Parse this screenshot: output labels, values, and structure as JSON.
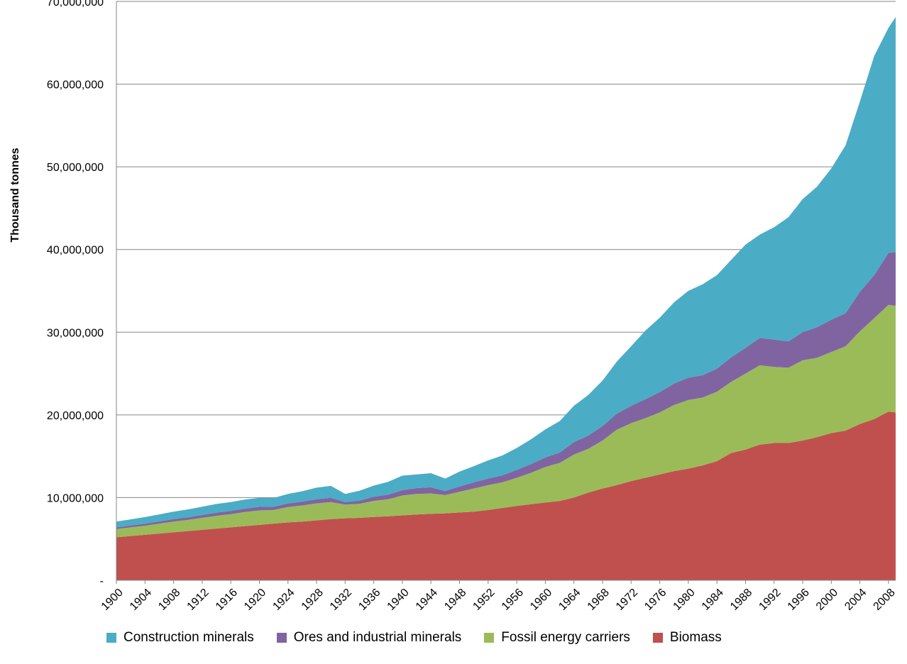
{
  "chart_data": {
    "type": "area",
    "stacked": true,
    "title": "",
    "xlabel": "",
    "ylabel": "Thousand tonnes",
    "ylim": [
      0,
      70000000
    ],
    "y_ticks": [
      0,
      10000000,
      20000000,
      30000000,
      40000000,
      50000000,
      60000000,
      70000000
    ],
    "y_tick_labels": [
      "-",
      "10,000,000",
      "20,000,000",
      "30,000,000",
      "40,000,000",
      "50,000,000",
      "60,000,000",
      "70,000,000"
    ],
    "x_tick_labels": [
      "1900",
      "1904",
      "1908",
      "1912",
      "1916",
      "1920",
      "1924",
      "1928",
      "1932",
      "1936",
      "1940",
      "1944",
      "1948",
      "1952",
      "1956",
      "1960",
      "1964",
      "1968",
      "1972",
      "1976",
      "1980",
      "1984",
      "1988",
      "1992",
      "1996",
      "2000",
      "2004",
      "2008"
    ],
    "grid": true,
    "legend_position": "bottom",
    "x": [
      1900,
      1902,
      1904,
      1906,
      1908,
      1910,
      1912,
      1914,
      1916,
      1918,
      1920,
      1922,
      1924,
      1926,
      1928,
      1930,
      1932,
      1934,
      1936,
      1938,
      1940,
      1942,
      1944,
      1946,
      1948,
      1950,
      1952,
      1954,
      1956,
      1958,
      1960,
      1962,
      1964,
      1966,
      1968,
      1970,
      1972,
      1974,
      1976,
      1978,
      1980,
      1982,
      1984,
      1986,
      1988,
      1990,
      1992,
      1994,
      1996,
      1998,
      2000,
      2002,
      2004,
      2006,
      2008,
      2009
    ],
    "series": [
      {
        "name": "Biomass",
        "color": "#C0504D",
        "values": [
          5200000,
          5350000,
          5500000,
          5650000,
          5800000,
          5950000,
          6100000,
          6250000,
          6400000,
          6550000,
          6700000,
          6850000,
          7000000,
          7100000,
          7250000,
          7400000,
          7500000,
          7550000,
          7650000,
          7750000,
          7850000,
          7950000,
          8050000,
          8100000,
          8200000,
          8300000,
          8500000,
          8750000,
          9000000,
          9200000,
          9400000,
          9600000,
          10000000,
          10600000,
          11100000,
          11500000,
          12000000,
          12400000,
          12800000,
          13200000,
          13500000,
          13900000,
          14400000,
          15400000,
          15800000,
          16400000,
          16600000,
          16600000,
          16900000,
          17300000,
          17800000,
          18100000,
          18900000,
          19500000,
          20400000,
          20300000
        ]
      },
      {
        "name": "Fossil energy carriers",
        "color": "#9BBB59",
        "values": [
          1000000,
          1050000,
          1100000,
          1200000,
          1300000,
          1350000,
          1450000,
          1550000,
          1600000,
          1700000,
          1750000,
          1650000,
          1850000,
          1950000,
          2050000,
          2050000,
          1650000,
          1700000,
          1950000,
          2050000,
          2400000,
          2500000,
          2450000,
          2200000,
          2500000,
          2800000,
          3000000,
          3100000,
          3400000,
          3800000,
          4300000,
          4600000,
          5200000,
          5300000,
          5800000,
          6700000,
          7000000,
          7200000,
          7500000,
          8000000,
          8300000,
          8200000,
          8400000,
          8600000,
          9200000,
          9600000,
          9200000,
          9100000,
          9700000,
          9600000,
          9800000,
          10200000,
          11200000,
          12200000,
          12900000,
          12900000
        ]
      },
      {
        "name": "Ores and industrial minerals",
        "color": "#8064A2",
        "values": [
          200000,
          220000,
          240000,
          270000,
          300000,
          320000,
          350000,
          380000,
          400000,
          420000,
          430000,
          400000,
          450000,
          470000,
          500000,
          520000,
          300000,
          380000,
          500000,
          550000,
          650000,
          700000,
          750000,
          500000,
          650000,
          750000,
          800000,
          850000,
          950000,
          1050000,
          1150000,
          1250000,
          1500000,
          1600000,
          1750000,
          1950000,
          2100000,
          2300000,
          2450000,
          2600000,
          2700000,
          2700000,
          2800000,
          2950000,
          3100000,
          3300000,
          3300000,
          3200000,
          3400000,
          3700000,
          3900000,
          4000000,
          4800000,
          5200000,
          6300000,
          6500000
        ]
      },
      {
        "name": "Construction minerals",
        "color": "#4BACC6",
        "values": [
          700000,
          750000,
          800000,
          850000,
          900000,
          950000,
          1000000,
          1050000,
          1050000,
          1100000,
          1100000,
          1050000,
          1150000,
          1250000,
          1400000,
          1450000,
          1000000,
          1200000,
          1350000,
          1550000,
          1750000,
          1650000,
          1700000,
          1500000,
          1800000,
          1950000,
          2200000,
          2400000,
          2650000,
          3000000,
          3400000,
          3800000,
          4400000,
          4900000,
          5500000,
          6300000,
          7200000,
          8300000,
          9000000,
          9800000,
          10500000,
          11000000,
          11300000,
          11800000,
          12500000,
          12500000,
          13600000,
          15000000,
          16100000,
          17000000,
          18300000,
          20300000,
          23000000,
          26500000,
          27200000,
          28400000
        ]
      }
    ]
  },
  "legend": {
    "items": [
      {
        "label": "Construction minerals",
        "color": "#4BACC6"
      },
      {
        "label": "Ores and industrial minerals",
        "color": "#8064A2"
      },
      {
        "label": "Fossil energy carriers",
        "color": "#9BBB59"
      },
      {
        "label": "Biomass",
        "color": "#C0504D"
      }
    ]
  }
}
